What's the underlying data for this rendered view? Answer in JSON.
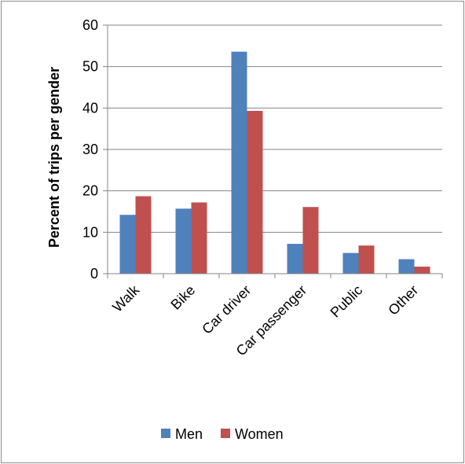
{
  "chart_data": {
    "type": "bar",
    "title": "",
    "xlabel": "",
    "ylabel": "Percent of trips per gender",
    "ylim": [
      0,
      60
    ],
    "yticks": [
      0,
      10,
      20,
      30,
      40,
      50,
      60
    ],
    "grid": true,
    "legend_position": "bottom",
    "categories": [
      "Walk",
      "Bike",
      "Car driver",
      "Car passenger",
      "Public",
      "Other"
    ],
    "series": [
      {
        "name": "Men",
        "color": "#4f81bd",
        "values": [
          14.2,
          15.7,
          53.6,
          7.2,
          5.0,
          3.5
        ]
      },
      {
        "name": "Women",
        "color": "#c0504d",
        "values": [
          18.7,
          17.2,
          39.3,
          16.1,
          6.8,
          1.7
        ]
      }
    ]
  }
}
